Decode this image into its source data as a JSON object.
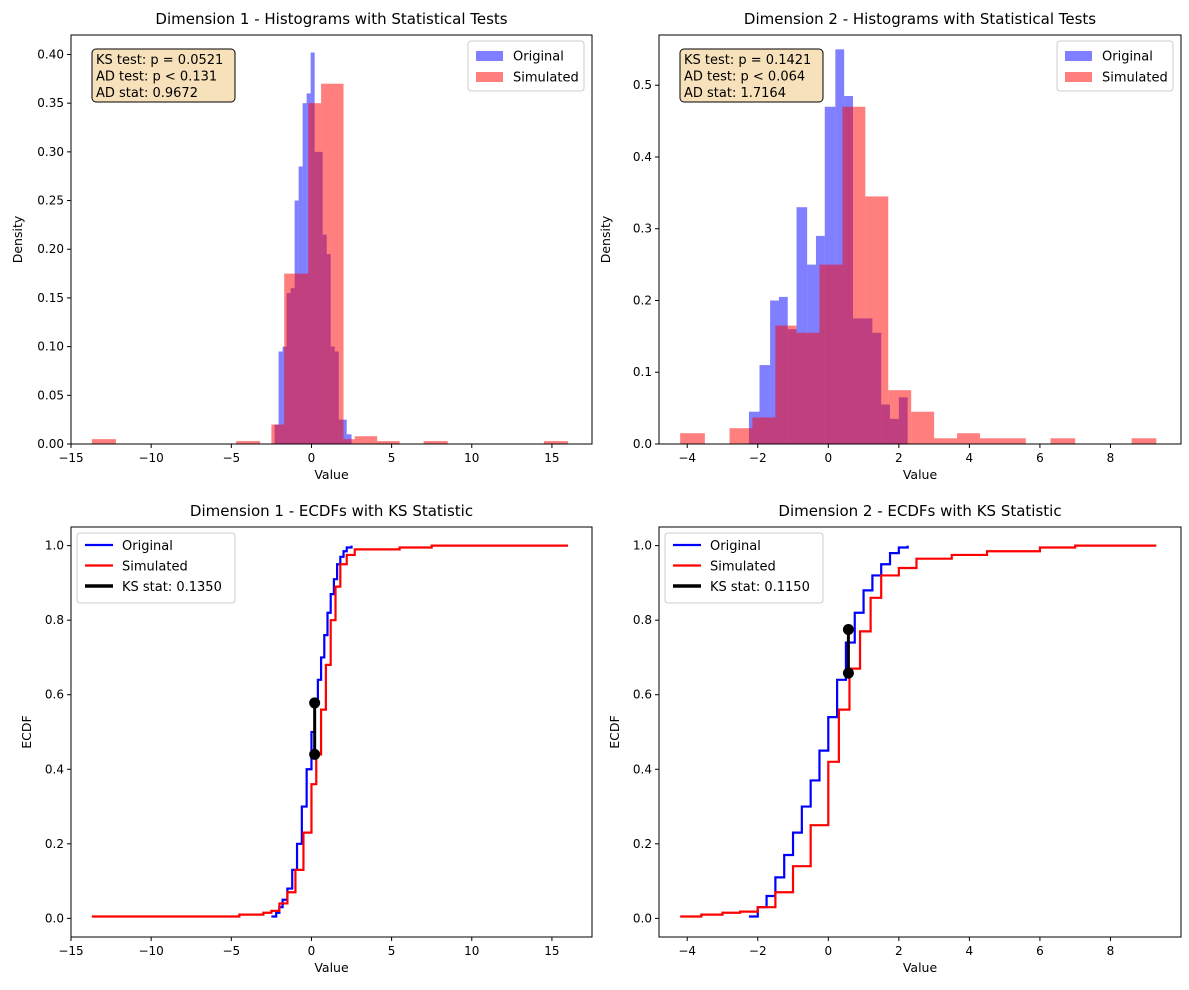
{
  "chart_data": [
    {
      "type": "bar",
      "title": "Dimension 1 - Histograms with Statistical Tests",
      "xlabel": "Value",
      "ylabel": "Density",
      "xlim": [
        -15.0,
        17.5
      ],
      "ylim": [
        0,
        0.42
      ],
      "xticks": [
        -15,
        -10,
        -5,
        0,
        5,
        10,
        15
      ],
      "yticks": [
        0.0,
        0.05,
        0.1,
        0.15,
        0.2,
        0.25,
        0.3,
        0.35,
        0.4
      ],
      "xtick_labels": [
        "−15",
        "−10",
        "−5",
        "0",
        "5",
        "10",
        "15"
      ],
      "ytick_labels": [
        "0.00",
        "0.05",
        "0.10",
        "0.15",
        "0.20",
        "0.25",
        "0.30",
        "0.35",
        "0.40"
      ],
      "annotation": [
        "KS test: p = 0.0521",
        "AD test: p < 0.131",
        "AD stat: 0.9672"
      ],
      "legend_position": "top-right",
      "series": [
        {
          "name": "Original",
          "color": "#0000ff",
          "opacity": 0.5,
          "edges": [
            -2.3,
            -2.05,
            -1.8,
            -1.55,
            -1.3,
            -1.05,
            -0.8,
            -0.55,
            -0.3,
            -0.05,
            0.2,
            0.45,
            0.7,
            0.95,
            1.2,
            1.45,
            1.7,
            1.95,
            2.2,
            2.5
          ],
          "values": [
            0.02,
            0.095,
            0.1,
            0.155,
            0.16,
            0.25,
            0.285,
            0.35,
            0.36,
            0.402,
            0.3,
            0.3,
            0.215,
            0.195,
            0.1,
            0.095,
            0.025,
            0.025,
            0.01
          ]
        },
        {
          "name": "Simulated",
          "color": "#ff0000",
          "opacity": 0.5,
          "edges": [
            -13.7,
            -12.2,
            -4.7,
            -3.2,
            -2.5,
            -1.7,
            -0.2,
            0.6,
            2.0,
            2.7,
            4.1,
            5.5,
            7.0,
            8.5,
            14.5,
            16.0
          ],
          "values": [
            0.005,
            0.0,
            0.003,
            0.0,
            0.02,
            0.175,
            0.35,
            0.37,
            0.005,
            0.008,
            0.003,
            0.0,
            0.003,
            0.0,
            0.003
          ]
        }
      ],
      "overlay_bars": [
        {
          "x0": -2.0,
          "x1": -0.55,
          "y": 0.175
        },
        {
          "x0": -0.55,
          "x1": 0.1,
          "y": 0.348
        },
        {
          "x0": 0.1,
          "x1": 1.2,
          "y": 0.36
        },
        {
          "x0": 1.2,
          "x1": 2.0,
          "y": 0.095
        }
      ]
    },
    {
      "type": "bar",
      "title": "Dimension 2 - Histograms with Statistical Tests",
      "xlabel": "Value",
      "ylabel": "Density",
      "xlim": [
        -4.8,
        10.0
      ],
      "ylim": [
        0,
        0.57
      ],
      "xticks": [
        -4,
        -2,
        0,
        2,
        4,
        6,
        8
      ],
      "yticks": [
        0.0,
        0.1,
        0.2,
        0.3,
        0.4,
        0.5
      ],
      "xtick_labels": [
        "−4",
        "−2",
        "0",
        "2",
        "4",
        "6",
        "8"
      ],
      "ytick_labels": [
        "0.0",
        "0.1",
        "0.2",
        "0.3",
        "0.4",
        "0.5"
      ],
      "annotation": [
        "KS test: p = 0.1421",
        "AD test: p < 0.064",
        "AD stat: 1.7164"
      ],
      "legend_position": "top-right",
      "series": [
        {
          "name": "Original",
          "color": "#0000ff",
          "opacity": 0.5,
          "edges": [
            -2.25,
            -1.95,
            -1.65,
            -1.4,
            -1.15,
            -0.9,
            -0.6,
            -0.35,
            -0.1,
            0.2,
            0.45,
            0.7,
            1.0,
            1.25,
            1.5,
            1.75,
            2.0,
            2.25
          ],
          "values": [
            0.045,
            0.11,
            0.2,
            0.205,
            0.16,
            0.33,
            0.25,
            0.29,
            0.47,
            0.55,
            0.485,
            0.175,
            0.175,
            0.155,
            0.055,
            0.035,
            0.065
          ]
        },
        {
          "name": "Simulated",
          "color": "#ff0000",
          "opacity": 0.5,
          "edges": [
            -4.2,
            -3.5,
            -2.8,
            -2.15,
            -1.5,
            -0.9,
            -0.25,
            0.4,
            1.05,
            1.7,
            2.35,
            3.0,
            3.65,
            4.3,
            5.0,
            5.6,
            6.3,
            7.0,
            8.6,
            9.3
          ],
          "values": [
            0.015,
            0.0,
            0.022,
            0.037,
            0.165,
            0.155,
            0.25,
            0.47,
            0.345,
            0.075,
            0.045,
            0.008,
            0.015,
            0.008,
            0.008,
            0.0,
            0.008,
            0.0,
            0.008
          ]
        }
      ]
    },
    {
      "type": "line",
      "title": "Dimension 1 - ECDFs with KS Statistic",
      "xlabel": "Value",
      "ylabel": "ECDF",
      "xlim": [
        -15.0,
        17.5
      ],
      "ylim": [
        -0.05,
        1.05
      ],
      "xticks": [
        -15,
        -10,
        -5,
        0,
        5,
        10,
        15
      ],
      "yticks": [
        0.0,
        0.2,
        0.4,
        0.6,
        0.8,
        1.0
      ],
      "xtick_labels": [
        "−15",
        "−10",
        "−5",
        "0",
        "5",
        "10",
        "15"
      ],
      "ytick_labels": [
        "0.0",
        "0.2",
        "0.4",
        "0.6",
        "0.8",
        "1.0"
      ],
      "legend_position": "top-left",
      "series": [
        {
          "name": "Original",
          "color": "#0000ff",
          "x": [
            -2.5,
            -2.2,
            -2.0,
            -1.8,
            -1.5,
            -1.2,
            -0.9,
            -0.6,
            -0.3,
            0.0,
            0.2,
            0.4,
            0.6,
            0.8,
            1.0,
            1.2,
            1.4,
            1.6,
            1.8,
            2.0,
            2.2,
            2.5
          ],
          "y": [
            0.005,
            0.015,
            0.03,
            0.05,
            0.08,
            0.13,
            0.2,
            0.3,
            0.4,
            0.5,
            0.58,
            0.64,
            0.7,
            0.76,
            0.82,
            0.87,
            0.91,
            0.95,
            0.97,
            0.985,
            0.995,
            1.0
          ]
        },
        {
          "name": "Simulated",
          "color": "#ff0000",
          "x": [
            -13.7,
            -4.5,
            -3.0,
            -2.5,
            -2.0,
            -1.5,
            -1.0,
            -0.5,
            0.0,
            0.3,
            0.6,
            0.9,
            1.2,
            1.5,
            1.8,
            2.2,
            2.7,
            4.0,
            5.5,
            7.5,
            16.0
          ],
          "y": [
            0.005,
            0.01,
            0.015,
            0.02,
            0.04,
            0.07,
            0.13,
            0.23,
            0.36,
            0.44,
            0.56,
            0.68,
            0.8,
            0.89,
            0.95,
            0.975,
            0.99,
            0.99,
            0.995,
            1.0,
            1.0
          ]
        }
      ],
      "ks_segment": {
        "name": "KS stat: 0.1350",
        "x": 0.2,
        "y_low": 0.44,
        "y_high": 0.578
      }
    },
    {
      "type": "line",
      "title": "Dimension 2 - ECDFs with KS Statistic",
      "xlabel": "Value",
      "ylabel": "ECDF",
      "xlim": [
        -4.8,
        10.0
      ],
      "ylim": [
        -0.05,
        1.05
      ],
      "xticks": [
        -4,
        -2,
        0,
        2,
        4,
        6,
        8
      ],
      "yticks": [
        0.0,
        0.2,
        0.4,
        0.6,
        0.8,
        1.0
      ],
      "xtick_labels": [
        "−4",
        "−2",
        "0",
        "2",
        "4",
        "6",
        "8"
      ],
      "ytick_labels": [
        "0.0",
        "0.2",
        "0.4",
        "0.6",
        "0.8",
        "1.0"
      ],
      "legend_position": "top-left",
      "series": [
        {
          "name": "Original",
          "color": "#0000ff",
          "x": [
            -2.25,
            -2.0,
            -1.75,
            -1.5,
            -1.25,
            -1.0,
            -0.75,
            -0.5,
            -0.25,
            0.0,
            0.25,
            0.5,
            0.75,
            1.0,
            1.25,
            1.5,
            1.75,
            2.0,
            2.25
          ],
          "y": [
            0.005,
            0.03,
            0.06,
            0.11,
            0.17,
            0.23,
            0.3,
            0.37,
            0.45,
            0.54,
            0.64,
            0.74,
            0.82,
            0.88,
            0.92,
            0.95,
            0.98,
            0.995,
            1.0
          ]
        },
        {
          "name": "Simulated",
          "color": "#ff0000",
          "x": [
            -4.2,
            -3.6,
            -3.0,
            -2.5,
            -2.0,
            -1.5,
            -1.0,
            -0.5,
            0.0,
            0.3,
            0.6,
            0.9,
            1.2,
            1.5,
            2.0,
            2.5,
            3.5,
            4.5,
            6.0,
            7.0,
            9.3
          ],
          "y": [
            0.005,
            0.01,
            0.015,
            0.018,
            0.03,
            0.07,
            0.14,
            0.25,
            0.42,
            0.56,
            0.67,
            0.77,
            0.86,
            0.92,
            0.94,
            0.965,
            0.975,
            0.985,
            0.995,
            1.0,
            1.0
          ]
        }
      ],
      "ks_segment": {
        "name": "KS stat: 0.1150",
        "x": 0.57,
        "y_low": 0.658,
        "y_high": 0.775
      }
    }
  ]
}
